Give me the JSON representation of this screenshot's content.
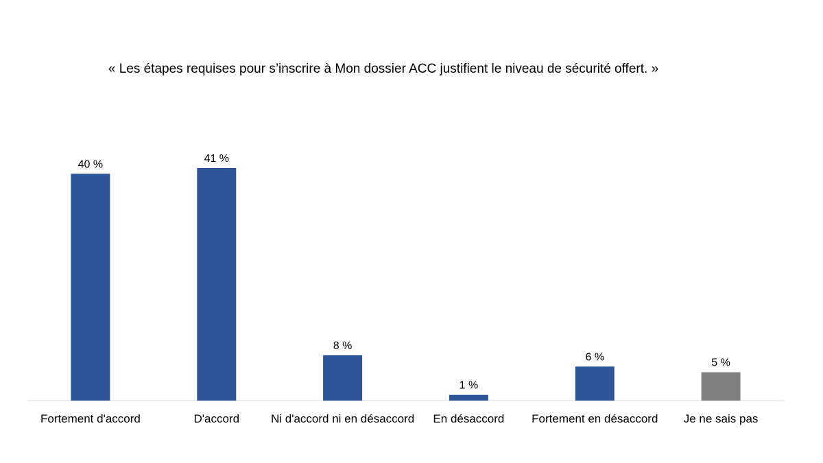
{
  "chart_data": {
    "type": "bar",
    "title": "« Les étapes requises pour s’inscrire à Mon dossier ACC justifient le niveau de sécurité offert. »",
    "categories": [
      "Fortement d'accord",
      "D'accord",
      "Ni d'accord ni en désaccord",
      "En désaccord",
      "Fortement en désaccord",
      "Je ne sais pas"
    ],
    "values": [
      40,
      41,
      8,
      1,
      6,
      5
    ],
    "data_labels": [
      "40 %",
      "41 %",
      "8 %",
      "1 %",
      "6 %",
      "5 %"
    ],
    "colors": [
      "#2E5597",
      "#2E5597",
      "#2E5597",
      "#2E5597",
      "#2E5597",
      "#808080"
    ],
    "xlabel": "",
    "ylabel": "",
    "ylim": [
      0,
      41
    ],
    "grid": false,
    "legend": "none"
  }
}
